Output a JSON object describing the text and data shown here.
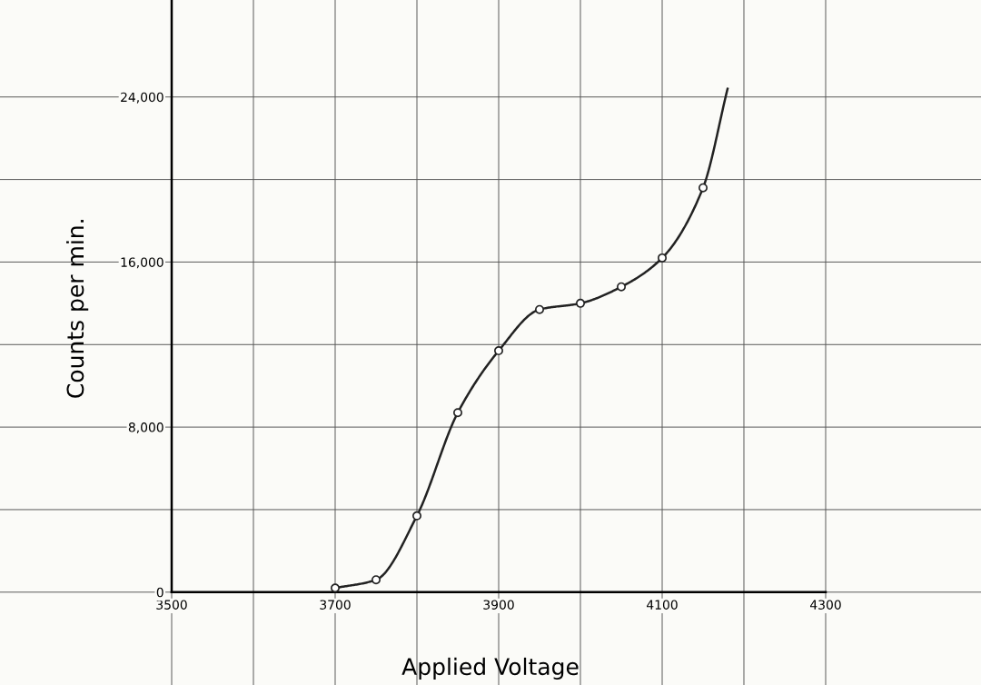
{
  "chart_data": {
    "type": "line",
    "xlabel": "Applied Voltage",
    "ylabel": "Counts per min.",
    "series": [
      {
        "type": "scatter",
        "color": "#222222",
        "marker": "circle",
        "x": [
          3700,
          3750,
          3800,
          3850,
          3900,
          3950,
          4000,
          4050,
          4100,
          4150
        ],
        "values": [
          200,
          600,
          3700,
          8700,
          11700,
          13700,
          14000,
          14800,
          16200,
          19600
        ]
      },
      {
        "color": "#222222",
        "marker": "none",
        "x": [
          3700,
          3750,
          3800,
          3850,
          3900,
          3950,
          4000,
          4050,
          4100,
          4150,
          4180
        ],
        "values": [
          200,
          600,
          3700,
          8700,
          11700,
          13700,
          14000,
          14800,
          16200,
          19600,
          24400
        ]
      }
    ],
    "xlim": [
      3290,
      4490
    ],
    "ylim": [
      -4500,
      28700
    ],
    "xticks": [
      3500,
      {
        "value": 3600,
        "label": null
      },
      3700,
      {
        "value": 3800,
        "label": null
      },
      3900,
      {
        "value": 4000,
        "label": null
      },
      4100,
      {
        "value": 4200,
        "label": null
      },
      4300
    ],
    "yticks": [
      {
        "value": 0,
        "label": "0"
      },
      {
        "value": 4000,
        "label": null
      },
      {
        "value": 8000,
        "label": "8,000"
      },
      {
        "value": 12000,
        "label": null
      },
      {
        "value": 16000,
        "label": "16,000"
      },
      {
        "value": 20000,
        "label": null
      },
      {
        "value": 24000,
        "label": "24,000"
      }
    ],
    "grid": true,
    "legend": false
  }
}
